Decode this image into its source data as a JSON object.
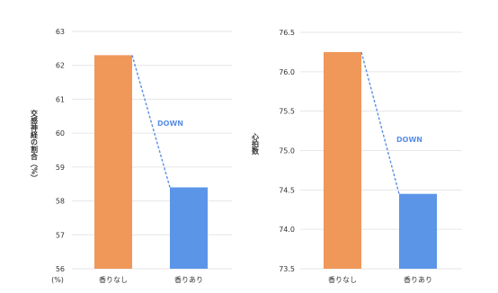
{
  "chart_data": [
    {
      "type": "bar",
      "categories": [
        "香りなし",
        "香りあり"
      ],
      "values": [
        62.3,
        58.4
      ],
      "colors": [
        "#f0975a",
        "#5b95e8"
      ],
      "ylabel": "交感神経の割合（%）",
      "ylim": [
        56,
        63
      ],
      "yticks": [
        "56",
        "57",
        "58",
        "59",
        "60",
        "61",
        "62",
        "63"
      ],
      "x_unit_label": "(%)",
      "annotation": "DOWN",
      "grid": true
    },
    {
      "type": "bar",
      "categories": [
        "香りなし",
        "香りあり"
      ],
      "values": [
        76.25,
        74.45
      ],
      "colors": [
        "#f0975a",
        "#5b95e8"
      ],
      "ylabel": "心拍数",
      "ylim": [
        73.5,
        76.5
      ],
      "yticks": [
        "73.5",
        "74.0",
        "74.5",
        "75.0",
        "75.5",
        "76.0",
        "76.5"
      ],
      "annotation": "DOWN",
      "grid": true
    }
  ]
}
